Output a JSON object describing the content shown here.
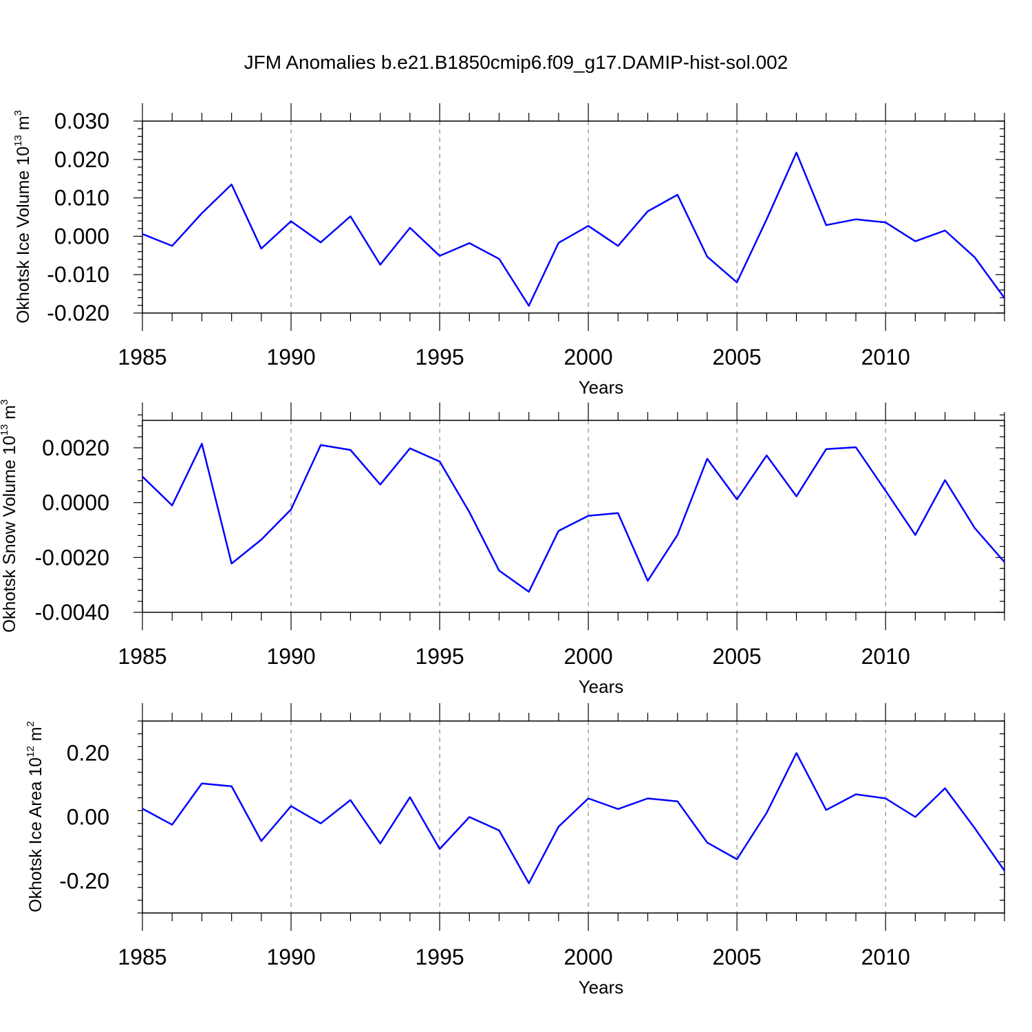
{
  "title": "JFM Anomalies b.e21.B1850cmip6.f09_g17.DAMIP-hist-sol.002",
  "line_color": "#0000ff",
  "chart_data": [
    {
      "type": "line",
      "title": "JFM Anomalies b.e21.B1850cmip6.f09_g17.DAMIP-hist-sol.002",
      "xlabel": "Years",
      "ylabel": {
        "text": "Okhotsk Ice Volume 10",
        "exponent": "13",
        "unit": " m",
        "unit_exponent": "3"
      },
      "xlim": [
        1985,
        2014
      ],
      "ylim": [
        -0.02,
        0.03
      ],
      "x_ticks": [
        1985,
        1990,
        1995,
        2000,
        2005,
        2010
      ],
      "x_tick_labels": [
        "1985",
        "1990",
        "1995",
        "2000",
        "2005",
        "2010"
      ],
      "y_ticks": [
        -0.02,
        -0.01,
        0.0,
        0.01,
        0.02,
        0.03
      ],
      "y_tick_labels": [
        "-0.020",
        "-0.010",
        "0.000",
        "0.010",
        "0.020",
        "0.030"
      ],
      "grid": "vertical dashed at major x ticks",
      "series": [
        {
          "name": "Okhotsk Ice Volume",
          "x": [
            1985,
            1986,
            1987,
            1988,
            1989,
            1990,
            1991,
            1992,
            1993,
            1994,
            1995,
            1996,
            1997,
            1998,
            1999,
            2000,
            2001,
            2002,
            2003,
            2004,
            2005,
            2006,
            2007,
            2008,
            2009,
            2010,
            2011,
            2012,
            2013,
            2014
          ],
          "values": [
            0.0006,
            -0.0025,
            0.006,
            0.0135,
            -0.0032,
            0.0039,
            -0.0016,
            0.0052,
            -0.0074,
            0.0022,
            -0.0051,
            -0.0018,
            -0.0059,
            -0.0181,
            -0.0017,
            0.0027,
            -0.0025,
            0.0065,
            0.0108,
            -0.0053,
            -0.012,
            0.0044,
            0.0218,
            0.0029,
            0.0044,
            0.0036,
            -0.0013,
            0.0015,
            -0.0055,
            -0.0161
          ]
        }
      ]
    },
    {
      "type": "line",
      "xlabel": "Years",
      "ylabel": {
        "text": "Okhotsk Snow Volume 10",
        "exponent": "13",
        "unit": " m",
        "unit_exponent": "3"
      },
      "xlim": [
        1985,
        2014
      ],
      "ylim": [
        -0.004,
        0.003
      ],
      "x_ticks": [
        1985,
        1990,
        1995,
        2000,
        2005,
        2010
      ],
      "x_tick_labels": [
        "1985",
        "1990",
        "1995",
        "2000",
        "2005",
        "2010"
      ],
      "y_ticks": [
        -0.004,
        -0.002,
        0.0,
        0.002
      ],
      "y_tick_labels": [
        "-0.0040",
        "-0.0020",
        "0.0000",
        "0.0020"
      ],
      "grid": "vertical dashed at major x ticks",
      "series": [
        {
          "name": "Okhotsk Snow Volume",
          "x": [
            1985,
            1986,
            1987,
            1988,
            1989,
            1990,
            1991,
            1992,
            1993,
            1994,
            1995,
            1996,
            1997,
            1998,
            1999,
            2000,
            2001,
            2002,
            2003,
            2004,
            2005,
            2006,
            2007,
            2008,
            2009,
            2010,
            2011,
            2012,
            2013,
            2014
          ],
          "values": [
            0.00095,
            -0.0001,
            0.00215,
            -0.00222,
            -0.00135,
            -0.00025,
            0.0021,
            0.00192,
            0.00066,
            0.00198,
            0.0015,
            -0.00035,
            -0.00248,
            -0.00325,
            -0.00103,
            -0.00048,
            -0.00038,
            -0.00285,
            -0.00118,
            0.0016,
            0.00012,
            0.00172,
            0.00023,
            0.00195,
            0.00202,
            0.00043,
            -0.00118,
            0.00082,
            -0.00093,
            -0.00217
          ]
        }
      ]
    },
    {
      "type": "line",
      "xlabel": "Years",
      "ylabel": {
        "text": "Okhotsk Ice Area 10",
        "exponent": "12",
        "unit": " m",
        "unit_exponent": "2"
      },
      "xlim": [
        1985,
        2014
      ],
      "ylim": [
        -0.3,
        0.3
      ],
      "x_ticks": [
        1985,
        1990,
        1995,
        2000,
        2005,
        2010
      ],
      "x_tick_labels": [
        "1985",
        "1990",
        "1995",
        "2000",
        "2005",
        "2010"
      ],
      "y_ticks": [
        -0.2,
        0.0,
        0.2
      ],
      "y_tick_labels": [
        "-0.20",
        "0.00",
        "0.20"
      ],
      "grid": "vertical dashed at major x ticks",
      "series": [
        {
          "name": "Okhotsk Ice Area",
          "x": [
            1985,
            1986,
            1987,
            1988,
            1989,
            1990,
            1991,
            1992,
            1993,
            1994,
            1995,
            1996,
            1997,
            1998,
            1999,
            2000,
            2001,
            2002,
            2003,
            2004,
            2005,
            2006,
            2007,
            2008,
            2009,
            2010,
            2011,
            2012,
            2013,
            2014
          ],
          "values": [
            0.026,
            -0.024,
            0.105,
            0.096,
            -0.075,
            0.034,
            -0.02,
            0.053,
            -0.083,
            0.062,
            -0.1,
            0.0,
            -0.042,
            -0.207,
            -0.03,
            0.058,
            0.025,
            0.058,
            0.049,
            -0.08,
            -0.132,
            0.013,
            0.2,
            0.022,
            0.071,
            0.058,
            0.0,
            0.09,
            -0.035,
            -0.168
          ]
        }
      ]
    }
  ]
}
